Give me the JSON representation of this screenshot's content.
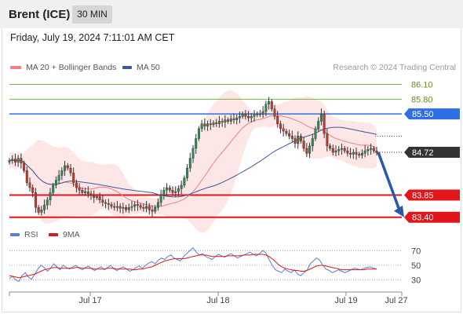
{
  "header": {
    "instrument": "Brent (ICE)",
    "timeframe": "30 MIN",
    "datetime": "Friday, July 19, 2024 7:11:01 AM CET"
  },
  "legend": {
    "ma20_label": "MA 20 + Bollinger Bands",
    "ma50_label": "MA 50",
    "credit": "Research © 2024 Trading Central",
    "rsi_label": "RSI",
    "rsi_ma_label": "9MA"
  },
  "colors": {
    "ma20": "#f08080",
    "ma50": "#3d5a99",
    "band_fill": "#fde3e3",
    "up_candle": "#2e8b57",
    "down_candle": "#c0392b",
    "resistance_green": "#7cb342",
    "pivot_blue": "#2f6fe4",
    "support_red": "#e0161b",
    "last_price_bg": "#333333",
    "arrow": "#2a5aa6",
    "rsi_line": "#5a7fd6",
    "rsi_ma_line": "#e0161b"
  },
  "chart_data": [
    {
      "type": "candlestick",
      "ylim": [
        83.3,
        86.3
      ],
      "x_ticks": [
        "Jul 17",
        "Jul 18",
        "Jul 19",
        "Jul 27"
      ],
      "closes": [
        84.55,
        84.58,
        84.52,
        84.6,
        84.5,
        84.35,
        84.1,
        84.0,
        83.9,
        83.6,
        83.5,
        83.55,
        83.65,
        83.75,
        83.9,
        84.05,
        84.15,
        84.25,
        84.35,
        84.45,
        84.4,
        84.3,
        84.1,
        84.0,
        83.95,
        83.9,
        83.92,
        83.88,
        83.85,
        83.8,
        83.82,
        83.75,
        83.7,
        83.68,
        83.66,
        83.62,
        83.6,
        83.62,
        83.58,
        83.6,
        83.55,
        83.6,
        83.62,
        83.66,
        83.64,
        83.6,
        83.58,
        83.62,
        83.55,
        83.52,
        83.6,
        83.7,
        83.85,
        83.95,
        84.0,
        83.95,
        83.9,
        83.92,
        83.98,
        84.05,
        84.2,
        84.4,
        84.6,
        84.8,
        85.0,
        85.2,
        85.3,
        85.25,
        85.3,
        85.28,
        85.32,
        85.3,
        85.35,
        85.33,
        85.38,
        85.35,
        85.4,
        85.38,
        85.42,
        85.45,
        85.5,
        85.45,
        85.42,
        85.45,
        85.48,
        85.5,
        85.5,
        85.55,
        85.7,
        85.75,
        85.6,
        85.45,
        85.3,
        85.2,
        85.15,
        85.1,
        85.05,
        85.0,
        84.9,
        85.05,
        84.95,
        84.8,
        84.7,
        84.85,
        85.0,
        85.2,
        85.35,
        85.5,
        85.1,
        84.85,
        84.8,
        84.72,
        84.75,
        84.78,
        84.8,
        84.75,
        84.7,
        84.68,
        84.72,
        84.68,
        84.66,
        84.7,
        84.75,
        84.78,
        84.8,
        84.75,
        84.72
      ],
      "series": [
        {
          "name": "MA 20 + Bollinger Bands"
        },
        {
          "name": "MA 50"
        }
      ],
      "levels": [
        {
          "value": 86.1,
          "label": "86.10",
          "kind": "resistance"
        },
        {
          "value": 85.8,
          "label": "85.80",
          "kind": "resistance"
        },
        {
          "value": 85.5,
          "label": "85.50",
          "kind": "pivot"
        },
        {
          "value": 84.72,
          "label": "84.72",
          "kind": "last"
        },
        {
          "value": 83.85,
          "label": "83.85",
          "kind": "support"
        },
        {
          "value": 83.4,
          "label": "83.40",
          "kind": "support"
        }
      ],
      "projection": {
        "from": 84.72,
        "to": 83.4
      }
    },
    {
      "type": "line",
      "ylim": [
        20,
        80
      ],
      "y_ticks": [
        "70",
        "50",
        "30"
      ],
      "y_tick_values": [
        70,
        50,
        30
      ],
      "series": [
        {
          "name": "RSI",
          "values": [
            32,
            35,
            30,
            28,
            36,
            40,
            34,
            31,
            38,
            45,
            50,
            47,
            42,
            46,
            52,
            48,
            44,
            50,
            47,
            45,
            48,
            50,
            46,
            44,
            47,
            49,
            45,
            43,
            46,
            48,
            44,
            47,
            50,
            45,
            43,
            46,
            48,
            45,
            42,
            44,
            47,
            49,
            46,
            50,
            53,
            55,
            52,
            57,
            60,
            58,
            62,
            64,
            60,
            58,
            56,
            62,
            66,
            70,
            74,
            68,
            64,
            66,
            62,
            60,
            58,
            62,
            65,
            63,
            61,
            64,
            66,
            63,
            60,
            62,
            64,
            66,
            68,
            65,
            63,
            66,
            70,
            67,
            58,
            50,
            44,
            42,
            40,
            45,
            42,
            40,
            44,
            38,
            36,
            40,
            43,
            52,
            56,
            60,
            57,
            50,
            45,
            43,
            40,
            42,
            44,
            42,
            40,
            42,
            44,
            46,
            45,
            44,
            46,
            47,
            48,
            46,
            45
          ]
        },
        {
          "name": "9MA",
          "values": [
            36,
            35,
            34,
            33,
            34,
            35,
            36,
            37,
            38,
            40,
            42,
            44,
            45,
            46,
            47,
            47,
            46,
            46,
            46,
            46,
            46,
            47,
            47,
            46,
            46,
            46,
            46,
            45,
            45,
            45,
            45,
            46,
            46,
            46,
            45,
            45,
            45,
            45,
            45,
            44,
            44,
            45,
            45,
            46,
            47,
            48,
            50,
            52,
            54,
            56,
            57,
            58,
            59,
            59,
            59,
            59,
            60,
            61,
            62,
            63,
            64,
            64,
            64,
            63,
            62,
            62,
            62,
            62,
            62,
            63,
            63,
            63,
            63,
            63,
            64,
            64,
            64,
            65,
            65,
            65,
            65,
            64,
            62,
            59,
            55,
            51,
            48,
            46,
            45,
            44,
            43,
            43,
            42,
            42,
            43,
            45,
            47,
            49,
            50,
            50,
            49,
            48,
            47,
            46,
            45,
            44,
            44,
            44,
            44,
            44,
            44,
            44,
            44,
            45,
            45,
            45,
            45
          ]
        }
      ]
    }
  ]
}
